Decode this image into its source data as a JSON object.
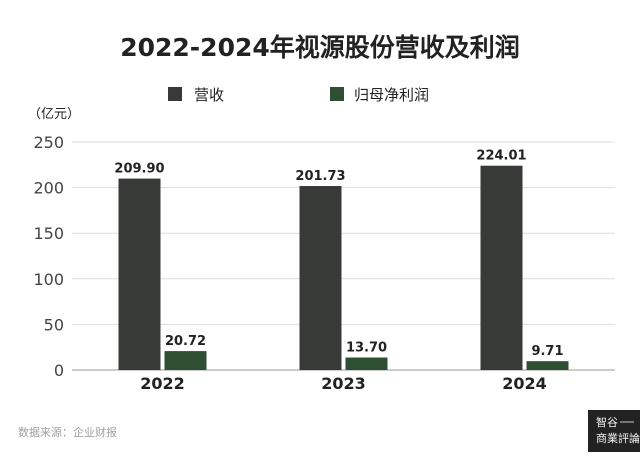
{
  "chart_data": {
    "type": "bar",
    "title": "2022-2024年视源股份营收及利润",
    "unit_label": "（亿元）",
    "categories": [
      "2022",
      "2023",
      "2024"
    ],
    "series": [
      {
        "name": "营收",
        "values": [
          209.9,
          201.73,
          224.01
        ],
        "labels": [
          "209.90",
          "201.73",
          "224.01"
        ],
        "color": "#383a38"
      },
      {
        "name": "归母净利润",
        "values": [
          20.72,
          13.7,
          9.71
        ],
        "labels": [
          "20.72",
          "13.70",
          "9.71"
        ],
        "color": "#2f4f33"
      }
    ],
    "ylim": [
      0,
      250
    ],
    "yticks": [
      0,
      50,
      100,
      150,
      200,
      250
    ],
    "grid": true,
    "legend_position": "top-center"
  },
  "source_text": "数据来源：企业财报",
  "watermark": {
    "lines": [
      "智谷",
      "商業評論"
    ],
    "bg": "#222222"
  }
}
